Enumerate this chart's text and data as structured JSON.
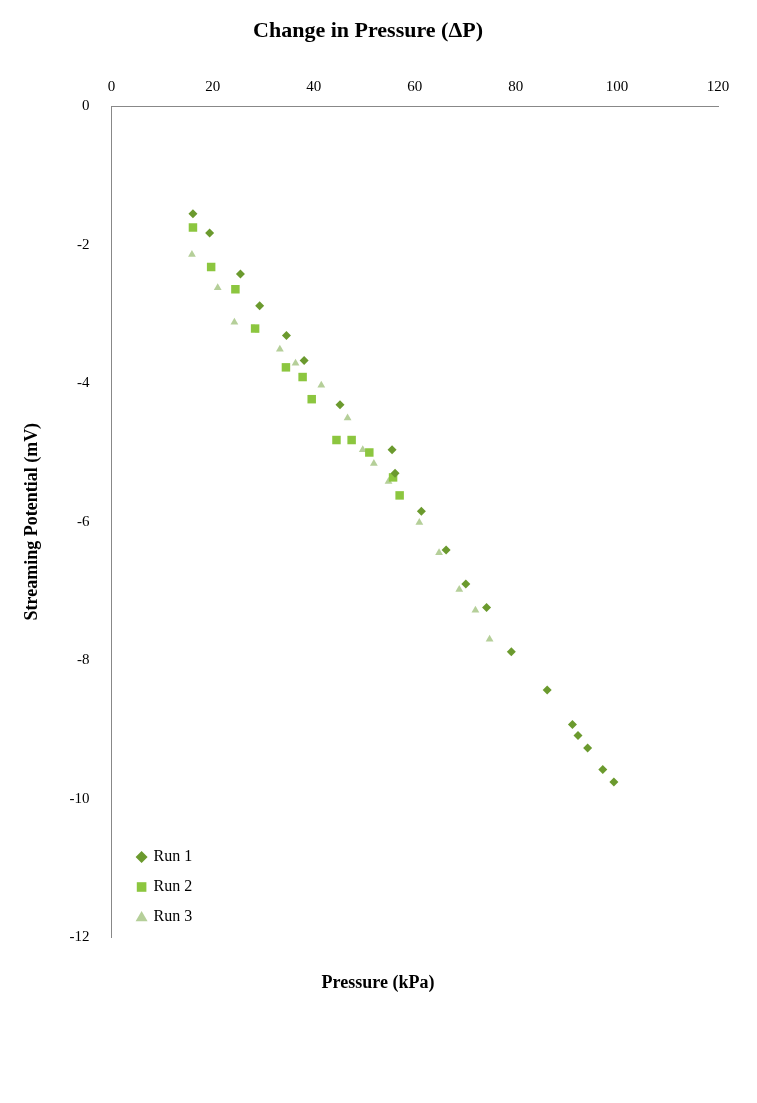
{
  "chart_data": {
    "type": "scatter",
    "title": "Change in Pressure (ΔP)",
    "xlabel": "Pressure (kPa)",
    "ylabel": "Streaming Potential (mV)",
    "xlim": [
      0,
      120
    ],
    "xticks": [
      0,
      20,
      40,
      60,
      80,
      100,
      120
    ],
    "ylim": [
      -12,
      0
    ],
    "yticks": [
      0,
      -2,
      -4,
      -6,
      -8,
      -10,
      -12
    ],
    "grid": false,
    "legend": "bottom left",
    "series": [
      {
        "name": "Run 1",
        "color": "#6b9a2e",
        "marker": "diamond",
        "x": [
          16.1,
          19.4,
          25.5,
          29.3,
          34.6,
          38.1,
          45.2,
          55.5,
          56.1,
          61.3,
          66.2,
          70.1,
          74.2,
          79.1,
          86.2,
          91.2,
          92.3,
          94.2,
          97.2,
          99.4
        ],
        "values": [
          -1.55,
          -1.83,
          -2.42,
          -2.88,
          -3.31,
          -3.67,
          -4.31,
          -4.96,
          -5.3,
          -5.85,
          -6.41,
          -6.9,
          -7.24,
          -7.88,
          -8.43,
          -8.93,
          -9.09,
          -9.27,
          -9.58,
          -9.76
        ]
      },
      {
        "name": "Run 2",
        "color": "#8cc63f",
        "marker": "square",
        "x": [
          16.1,
          19.7,
          24.5,
          28.4,
          34.5,
          37.8,
          39.6,
          44.5,
          47.5,
          51,
          55.7,
          57
        ],
        "values": [
          -1.75,
          -2.32,
          -2.64,
          -3.21,
          -3.77,
          -3.91,
          -4.23,
          -4.82,
          -4.82,
          -5,
          -5.36,
          -5.62
        ]
      },
      {
        "name": "Run 3",
        "color": "#b5cf99",
        "marker": "triangle",
        "x": [
          15.9,
          21,
          24.3,
          33.3,
          36.4,
          41.5,
          46.7,
          49.7,
          51.9,
          54.8,
          60.9,
          64.8,
          68.8,
          72,
          74.8
        ],
        "values": [
          -2.14,
          -2.62,
          -3.12,
          -3.51,
          -3.71,
          -4.03,
          -4.5,
          -4.96,
          -5.16,
          -5.42,
          -6.01,
          -6.45,
          -6.98,
          -7.28,
          -7.7
        ]
      }
    ]
  }
}
